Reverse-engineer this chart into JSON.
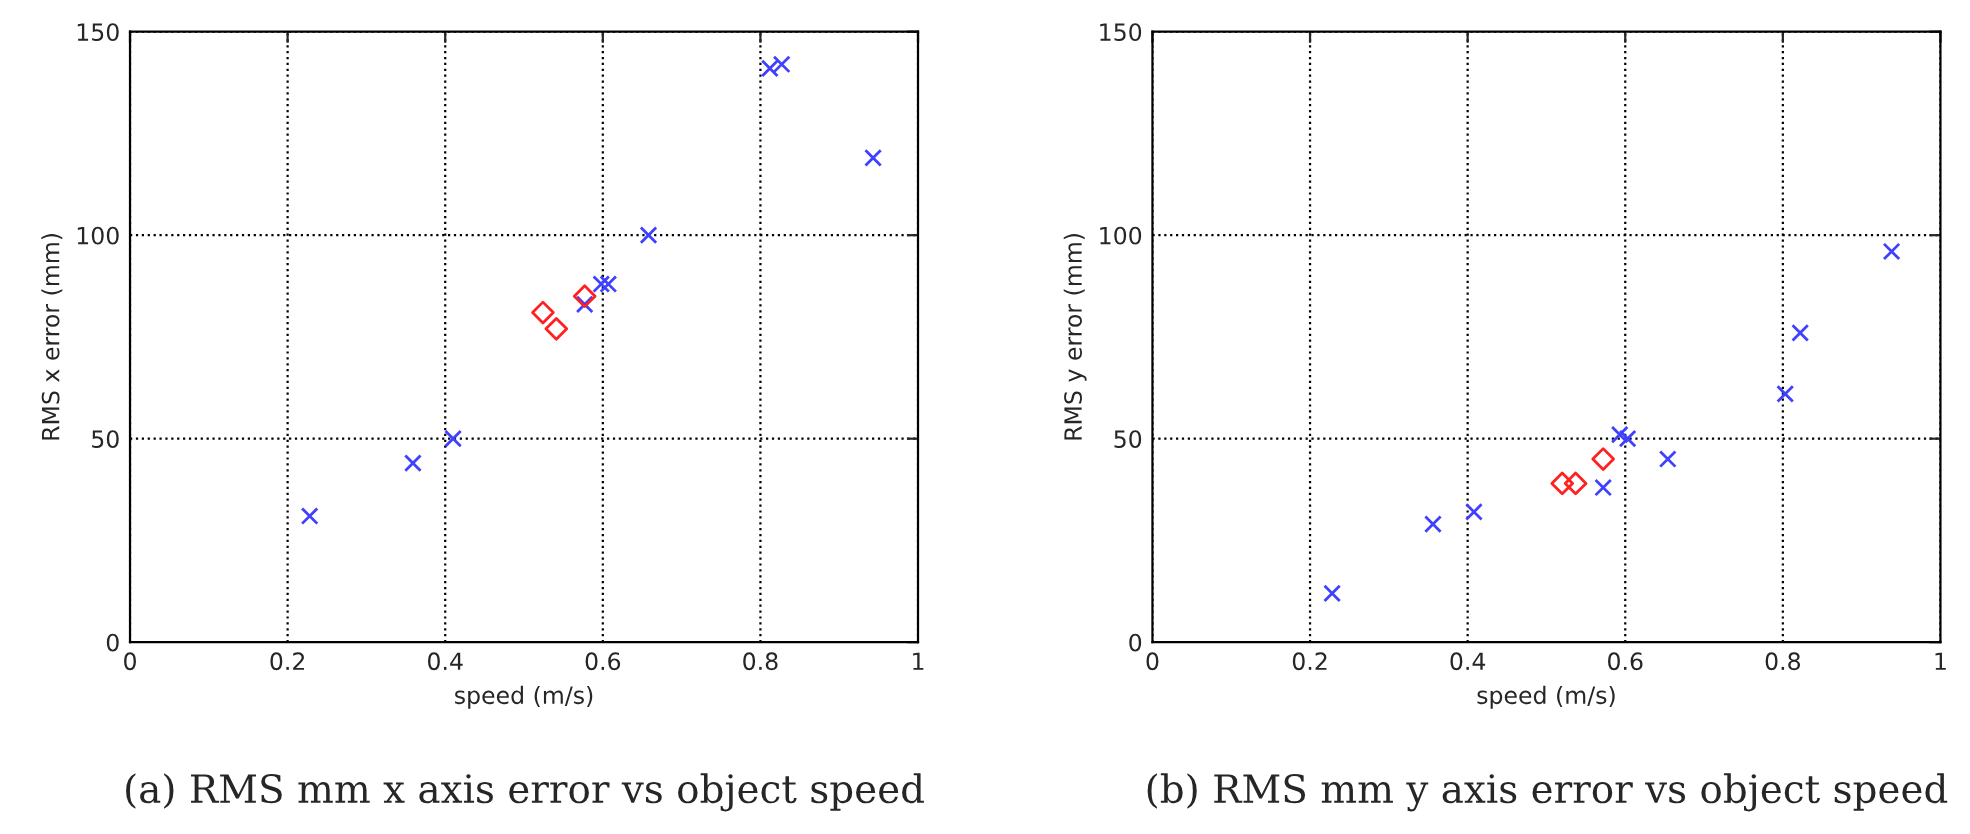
{
  "chart_data": [
    {
      "type": "scatter",
      "xlabel": "speed (m/s)",
      "ylabel": "RMS x error (mm)",
      "annotations": [
        "(a) RMS mm x axis error vs object speed"
      ],
      "xlim": [
        0,
        1
      ],
      "ylim": [
        0,
        150
      ],
      "xticks": [
        0,
        0.2,
        0.4,
        0.6,
        0.8,
        1
      ],
      "yticks": [
        0,
        50,
        100,
        150
      ],
      "grid": true,
      "series": [
        {
          "color": "#4040ff",
          "marker": "cross",
          "x": [
            0.228,
            0.359,
            0.41,
            0.577,
            0.598,
            0.607,
            0.658,
            0.812,
            0.827,
            0.943
          ],
          "values": [
            31,
            44,
            50,
            83,
            88,
            88,
            100,
            141,
            142,
            119
          ]
        },
        {
          "color": "#ff2020",
          "marker": "diamond",
          "x": [
            0.524,
            0.541,
            0.577
          ],
          "values": [
            81,
            77,
            85
          ]
        }
      ]
    },
    {
      "type": "scatter",
      "xlabel": "speed (m/s)",
      "ylabel": "RMS y error (mm)",
      "annotations": [
        "(b) RMS mm y axis error vs object speed"
      ],
      "xlim": [
        0,
        1
      ],
      "ylim": [
        0,
        150
      ],
      "xticks": [
        0,
        0.2,
        0.4,
        0.6,
        0.8,
        1
      ],
      "yticks": [
        0,
        50,
        100,
        150
      ],
      "grid": true,
      "series": [
        {
          "color": "#4040ff",
          "marker": "cross",
          "x": [
            0.228,
            0.356,
            0.408,
            0.572,
            0.593,
            0.603,
            0.654,
            0.803,
            0.822,
            0.938
          ],
          "values": [
            12,
            29,
            32,
            38,
            51,
            50,
            45,
            61,
            76,
            96
          ]
        },
        {
          "color": "#ff2020",
          "marker": "diamond",
          "x": [
            0.52,
            0.537,
            0.572
          ],
          "values": [
            39,
            39,
            45
          ]
        }
      ]
    }
  ]
}
